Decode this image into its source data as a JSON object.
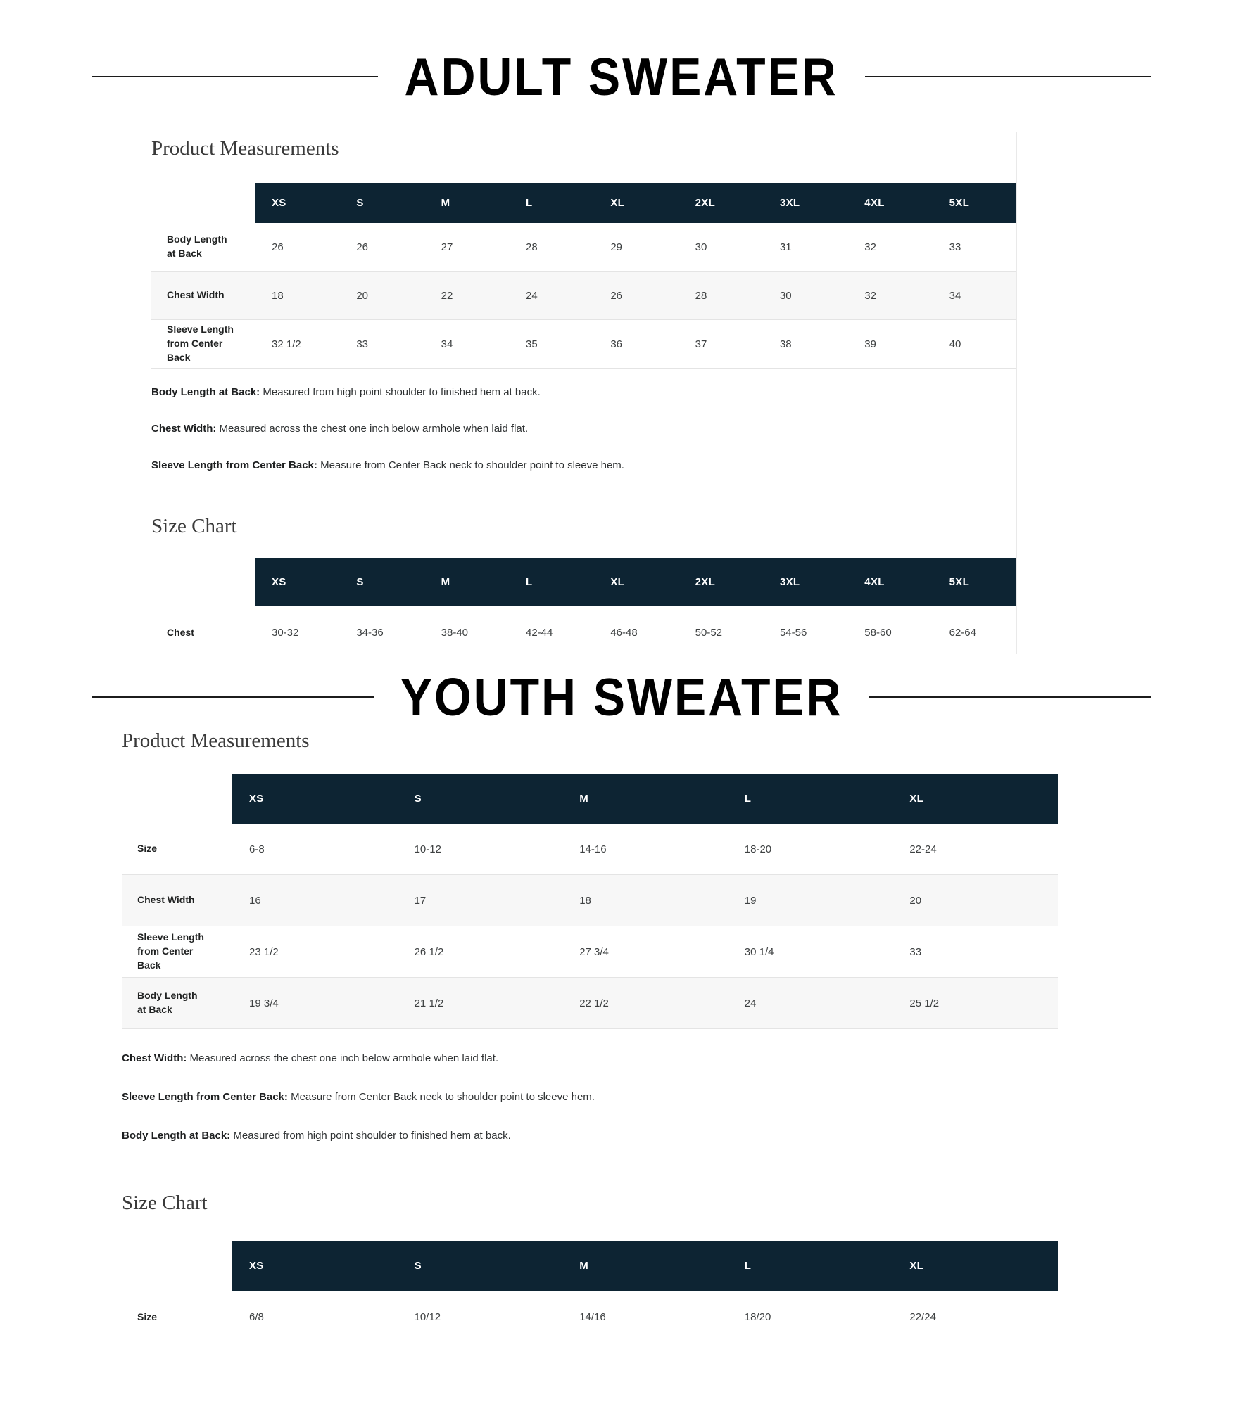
{
  "colors": {
    "header_bg": "#0d2433",
    "row_stripe": "#f7f7f7",
    "separator": "#e4e4e4",
    "title_rule": "#1c1c1c"
  },
  "sections": [
    {
      "title": "ADULT SWEATER",
      "measurements_heading": "Product Measurements",
      "size_chart_heading": "Size Chart",
      "measurements": {
        "columns": [
          "XS",
          "S",
          "M",
          "L",
          "XL",
          "2XL",
          "3XL",
          "4XL",
          "5XL"
        ],
        "rows": [
          {
            "label": "Body Length at Back",
            "values": [
              "26",
              "26",
              "27",
              "28",
              "29",
              "30",
              "31",
              "32",
              "33"
            ]
          },
          {
            "label": "Chest Width",
            "values": [
              "18",
              "20",
              "22",
              "24",
              "26",
              "28",
              "30",
              "32",
              "34"
            ]
          },
          {
            "label": "Sleeve Length from Center Back",
            "values": [
              "32 1/2",
              "33",
              "34",
              "35",
              "36",
              "37",
              "38",
              "39",
              "40"
            ]
          }
        ]
      },
      "notes": [
        {
          "term": "Body Length at Back:",
          "text": "Measured from high point shoulder to finished hem at back."
        },
        {
          "term": "Chest Width:",
          "text": "Measured across the chest one inch below armhole when laid flat."
        },
        {
          "term": "Sleeve Length from Center Back:",
          "text": "Measure from Center Back neck to shoulder point to sleeve hem."
        }
      ],
      "size_chart": {
        "columns": [
          "XS",
          "S",
          "M",
          "L",
          "XL",
          "2XL",
          "3XL",
          "4XL",
          "5XL"
        ],
        "rows": [
          {
            "label": "Chest",
            "values": [
              "30-32",
              "34-36",
              "38-40",
              "42-44",
              "46-48",
              "50-52",
              "54-56",
              "58-60",
              "62-64"
            ]
          }
        ]
      }
    },
    {
      "title": "YOUTH SWEATER",
      "measurements_heading": "Product Measurements",
      "size_chart_heading": "Size Chart",
      "measurements": {
        "columns": [
          "XS",
          "S",
          "M",
          "L",
          "XL"
        ],
        "rows": [
          {
            "label": "Size",
            "values": [
              "6-8",
              "10-12",
              "14-16",
              "18-20",
              "22-24"
            ]
          },
          {
            "label": "Chest Width",
            "values": [
              "16",
              "17",
              "18",
              "19",
              "20"
            ]
          },
          {
            "label": "Sleeve Length from Center Back",
            "values": [
              "23 1/2",
              "26 1/2",
              "27 3/4",
              "30 1/4",
              "33"
            ]
          },
          {
            "label": "Body Length at Back",
            "values": [
              "19 3/4",
              "21 1/2",
              "22 1/2",
              "24",
              "25 1/2"
            ]
          }
        ]
      },
      "notes": [
        {
          "term": "Chest Width:",
          "text": "Measured across the chest one inch below armhole when laid flat."
        },
        {
          "term": "Sleeve Length from Center Back:",
          "text": "Measure from Center Back neck to shoulder point to sleeve hem."
        },
        {
          "term": "Body Length at Back:",
          "text": "Measured from high point shoulder to finished hem at back."
        }
      ],
      "size_chart": {
        "columns": [
          "XS",
          "S",
          "M",
          "L",
          "XL"
        ],
        "rows": [
          {
            "label": "Size",
            "values": [
              "6/8",
              "10/12",
              "14/16",
              "18/20",
              "22/24"
            ]
          }
        ]
      }
    }
  ]
}
